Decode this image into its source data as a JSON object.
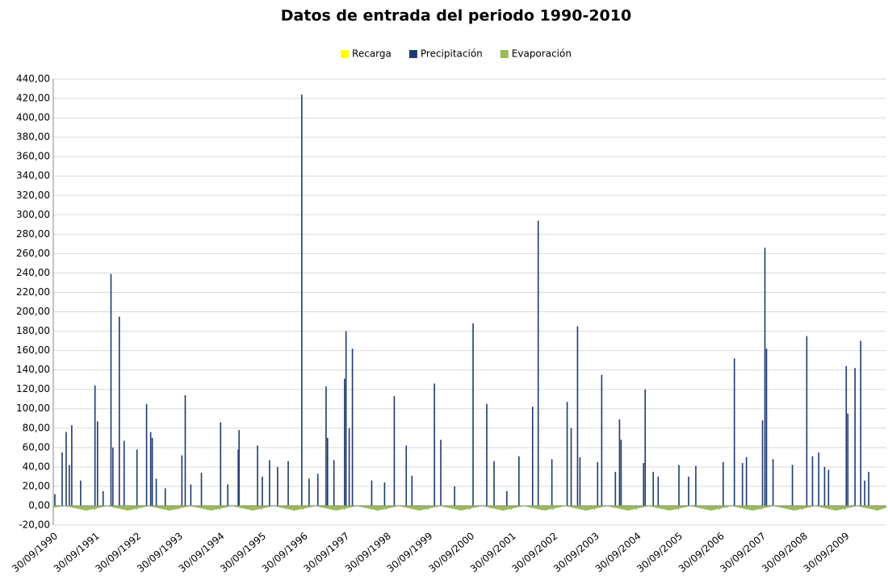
{
  "chart_data": {
    "type": "bar",
    "title": "Datos de entrada del periodo 1990-2010",
    "legend": "top",
    "grid": true,
    "xlim": [
      "30/09/1990",
      "30/09/2010"
    ],
    "xticks": [
      "30/09/1990",
      "30/09/1991",
      "30/09/1992",
      "30/09/1993",
      "30/09/1994",
      "30/09/1995",
      "30/09/1996",
      "30/09/1997",
      "30/09/1998",
      "30/09/1999",
      "30/09/2000",
      "30/09/2001",
      "30/09/2002",
      "30/09/2003",
      "30/09/2004",
      "30/09/2005",
      "30/09/2006",
      "30/09/2007",
      "30/09/2008",
      "30/09/2009"
    ],
    "ylim": [
      -20,
      440
    ],
    "yticks": [
      {
        "value": -20,
        "label": "-20,00"
      },
      {
        "value": 0,
        "label": "0,00"
      },
      {
        "value": 20,
        "label": "20,00"
      },
      {
        "value": 40,
        "label": "40,00"
      },
      {
        "value": 60,
        "label": "60,00"
      },
      {
        "value": 80,
        "label": "80,00"
      },
      {
        "value": 100,
        "label": "100,00"
      },
      {
        "value": 120,
        "label": "120,00"
      },
      {
        "value": 140,
        "label": "140,00"
      },
      {
        "value": 160,
        "label": "160,00"
      },
      {
        "value": 180,
        "label": "180,00"
      },
      {
        "value": 200,
        "label": "200,00"
      },
      {
        "value": 220,
        "label": "220,00"
      },
      {
        "value": 240,
        "label": "240,00"
      },
      {
        "value": 260,
        "label": "260,00"
      },
      {
        "value": 280,
        "label": "280,00"
      },
      {
        "value": 300,
        "label": "300,00"
      },
      {
        "value": 320,
        "label": "320,00"
      },
      {
        "value": 340,
        "label": "340,00"
      },
      {
        "value": 360,
        "label": "360,00"
      },
      {
        "value": 380,
        "label": "380,00"
      },
      {
        "value": 400,
        "label": "400,00"
      },
      {
        "value": 420,
        "label": "420,00"
      },
      {
        "value": 440,
        "label": "440,00"
      }
    ],
    "series": [
      {
        "name": "Recarga",
        "color": "#ffff00",
        "kind": "bar",
        "x": [
          "18/02/1992",
          "18/04/1997",
          "22/05/2002",
          "31/10/2007",
          "17/02/2010"
        ],
        "values": [
          3,
          4,
          5,
          4,
          3
        ]
      },
      {
        "name": "Precipitación",
        "color": "#1f3a6e",
        "kind": "bar",
        "x": [
          "14/10/1990",
          "17/12/1990",
          "21/01/1991",
          "18/02/1991",
          "11/03/1991",
          "28/05/1991",
          "01/10/1991",
          "23/10/1991",
          "11/12/1991",
          "18/02/1992",
          "06/03/1992",
          "01/05/1992",
          "12/06/1992",
          "03/10/1992",
          "26/12/1992",
          "31/01/1993",
          "14/02/1993",
          "21/03/1993",
          "08/06/1993",
          "01/11/1993",
          "30/11/1993",
          "18/01/1994",
          "21/04/1994",
          "06/10/1994",
          "08/12/1994",
          "10/03/1995",
          "17/03/1995",
          "26/08/1995",
          "07/10/1995",
          "09/12/1995",
          "18/02/1996",
          "21/05/1996",
          "17/09/1996",
          "20/11/1996",
          "05/02/1997",
          "18/04/1997",
          "01/05/1997",
          "26/06/1997",
          "27/09/1997",
          "10/10/1997",
          "07/11/1997",
          "05/12/1997",
          "23/05/1998",
          "13/09/1998",
          "07/12/1998",
          "22/03/1999",
          "11/05/1999",
          "24/11/1999",
          "19/01/2000",
          "19/05/2000",
          "28/10/2000",
          "25/02/2001",
          "30/04/2001",
          "20/08/2001",
          "04/12/2001",
          "03/04/2002",
          "22/05/2002",
          "19/09/2002",
          "31/01/2003",
          "07/03/2003",
          "02/05/2003",
          "23/05/2003",
          "25/10/2003",
          "30/11/2003",
          "29/03/2004",
          "04/05/2004",
          "18/05/2004",
          "01/12/2004",
          "15/12/2004",
          "24/02/2005",
          "08/04/2005",
          "07/10/2005",
          "31/12/2005",
          "04/03/2006",
          "30/10/2006",
          "05/02/2007",
          "17/04/2007",
          "22/05/2007",
          "10/10/2007",
          "31/10/2007",
          "14/11/2007",
          "10/01/2008",
          "28/06/2008",
          "01/11/2008",
          "21/12/2008",
          "14/02/2009",
          "06/04/2009",
          "11/05/2009",
          "13/10/2009",
          "27/10/2009",
          "29/12/2009",
          "17/02/2010",
          "24/03/2010",
          "28/04/2010"
        ],
        "values": [
          12,
          55,
          76,
          42,
          83,
          26,
          124,
          87,
          15,
          239,
          60,
          195,
          67,
          58,
          105,
          76,
          70,
          28,
          18,
          52,
          114,
          22,
          34,
          86,
          22,
          58,
          78,
          62,
          30,
          47,
          40,
          46,
          424,
          28,
          33,
          123,
          70,
          47,
          131,
          180,
          80,
          162,
          26,
          24,
          113,
          62,
          31,
          126,
          68,
          20,
          188,
          105,
          46,
          15,
          51,
          102,
          294,
          48,
          107,
          80,
          185,
          50,
          45,
          135,
          35,
          89,
          68,
          44,
          120,
          35,
          30,
          42,
          30,
          41,
          45,
          152,
          44,
          50,
          88,
          266,
          162,
          48,
          42,
          175,
          51,
          55,
          40,
          37,
          144,
          95,
          142,
          170,
          26,
          35
        ]
      },
      {
        "name": "Evaporación",
        "color": "#9bbb59",
        "kind": "area",
        "x": [
          "30/09/1990",
          "15/01/1991",
          "15/07/1991",
          "15/01/1992",
          "15/07/1992",
          "15/01/1993",
          "15/07/1993",
          "15/01/1994",
          "15/07/1994",
          "15/01/1995",
          "15/07/1995",
          "15/01/1996",
          "15/07/1996",
          "15/01/1997",
          "15/07/1997",
          "15/01/1998",
          "15/07/1998",
          "15/01/1999",
          "15/07/1999",
          "15/01/2000",
          "15/07/2000",
          "15/01/2001",
          "15/07/2001",
          "15/01/2002",
          "15/07/2002",
          "15/01/2003",
          "15/07/2003",
          "15/01/2004",
          "15/07/2004",
          "15/01/2005",
          "15/07/2005",
          "15/01/2006",
          "15/07/2006",
          "15/01/2007",
          "15/07/2007",
          "15/01/2008",
          "15/07/2008",
          "15/01/2009",
          "15/07/2009",
          "15/01/2010",
          "15/07/2010",
          "30/09/2010"
        ],
        "values": [
          -2,
          -0.5,
          -5,
          -0.5,
          -5,
          -0.5,
          -5,
          -0.5,
          -5,
          -0.5,
          -5,
          -0.5,
          -5,
          -0.5,
          -5,
          -0.5,
          -5,
          -0.5,
          -5,
          -0.5,
          -5,
          -0.5,
          -5,
          -0.5,
          -5,
          -0.5,
          -5,
          -0.5,
          -5,
          -0.5,
          -5,
          -0.5,
          -5,
          -0.5,
          -5,
          -0.5,
          -5,
          -0.5,
          -5,
          -0.5,
          -5,
          -2
        ]
      }
    ]
  }
}
